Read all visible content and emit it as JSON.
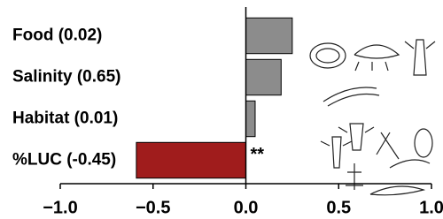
{
  "chart_data": {
    "type": "barh",
    "categories": [
      "Food (0.02)",
      "Salinity (0.65)",
      "Habitat (0.01)",
      "%LUC (-0.45)"
    ],
    "values": [
      0.25,
      0.19,
      0.05,
      -0.59
    ],
    "colors": [
      "#8c8c8c",
      "#8c8c8c",
      "#8c8c8c",
      "#a01c1c"
    ],
    "xlim": [
      -1.0,
      1.0
    ],
    "xticks": [
      {
        "value": -1.0,
        "label": "−1.0"
      },
      {
        "value": -0.5,
        "label": "−0.5"
      },
      {
        "value": 0,
        "label": "0.0"
      },
      {
        "value": 0.5,
        "label": "0.5"
      },
      {
        "value": 1.0,
        "label": "1.0"
      }
    ],
    "annotations": [
      {
        "category": 3,
        "text": "**"
      }
    ]
  }
}
